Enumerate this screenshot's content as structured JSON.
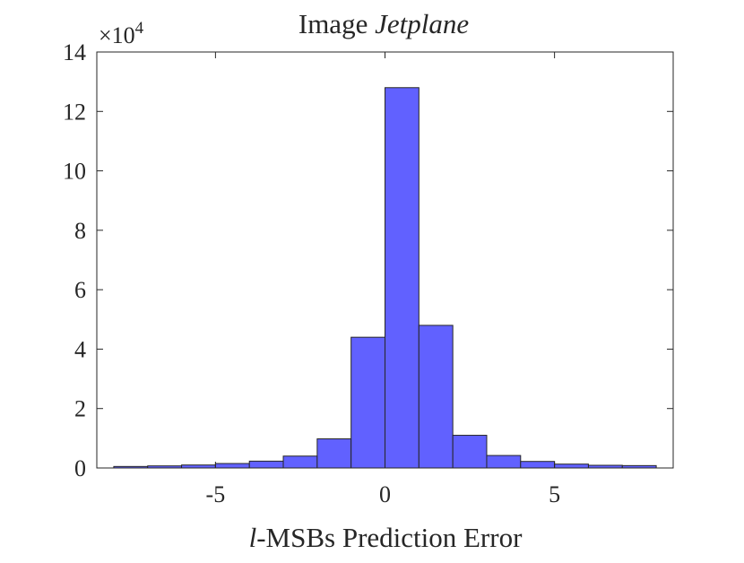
{
  "chart_data": {
    "type": "bar",
    "subtype": "histogram",
    "title": {
      "prefix": "Image ",
      "emphasis": "Jetplane"
    },
    "xlabel": {
      "emphasis": "l",
      "rest": "-MSBs Prediction Error"
    },
    "ylabel": "",
    "y_exponent_label": {
      "base": "×10",
      "power": "4"
    },
    "xlim": [
      -8.5,
      8.5
    ],
    "ylim": [
      0,
      14
    ],
    "xticks": [
      -5,
      0,
      5
    ],
    "xtick_labels": [
      "-5",
      "0",
      "5"
    ],
    "yticks": [
      0,
      2,
      4,
      6,
      8,
      10,
      12,
      14
    ],
    "ytick_labels": [
      "0",
      "2",
      "4",
      "6",
      "8",
      "10",
      "12",
      "14"
    ],
    "grid": false,
    "bar_color": "#6161ff",
    "edge_color": "#262626",
    "bins": [
      {
        "x0": -8,
        "x1": -7,
        "value": 0.05
      },
      {
        "x0": -7,
        "x1": -6,
        "value": 0.07
      },
      {
        "x0": -6,
        "x1": -5,
        "value": 0.1
      },
      {
        "x0": -5,
        "x1": -4,
        "value": 0.15
      },
      {
        "x0": -4,
        "x1": -3,
        "value": 0.23
      },
      {
        "x0": -3,
        "x1": -2,
        "value": 0.4
      },
      {
        "x0": -2,
        "x1": -1,
        "value": 0.98
      },
      {
        "x0": -1,
        "x1": 0,
        "value": 4.4
      },
      {
        "x0": 0,
        "x1": 1,
        "value": 12.8
      },
      {
        "x0": 1,
        "x1": 2,
        "value": 4.8
      },
      {
        "x0": 2,
        "x1": 3,
        "value": 1.1
      },
      {
        "x0": 3,
        "x1": 4,
        "value": 0.42
      },
      {
        "x0": 4,
        "x1": 5,
        "value": 0.22
      },
      {
        "x0": 5,
        "x1": 6,
        "value": 0.13
      },
      {
        "x0": 6,
        "x1": 7,
        "value": 0.09
      },
      {
        "x0": 7,
        "x1": 8,
        "value": 0.08
      }
    ]
  }
}
